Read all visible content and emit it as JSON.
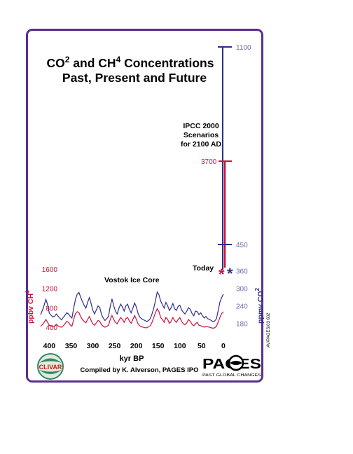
{
  "title": {
    "line1_a": "CO",
    "line1_sup1": "2",
    "line1_b": " and CH",
    "line1_sup2": "4",
    "line1_c": " Concentrations",
    "line2": "Past, Present and Future"
  },
  "annotations": {
    "ipcc": [
      "IPCC 2000",
      "Scenarios",
      "for 2100 AD"
    ],
    "today": "Today",
    "vostok": "Vostok Ice Core",
    "credit": "Compiled by K. Alverson, PAGES IPO",
    "side_code": "AV/PAGES/03 602",
    "clivar": "CLIVAR",
    "pages_logo": "PAGES",
    "pages_sub": "PAST GLOBAL CHANGES"
  },
  "colors": {
    "co2": "#2e2e8c",
    "ch4": "#d0103a",
    "frame": "#5b2d90",
    "text": "#000000",
    "co2_tick_text": "#6c6cae",
    "ch4_tick_text": "#d0103a"
  },
  "chart_data": {
    "type": "line",
    "xlabel": "kyr BP",
    "xlim": [
      420,
      -5
    ],
    "x_ticks": [
      "400",
      "350",
      "300",
      "250",
      "200",
      "150",
      "100",
      "50",
      "0"
    ],
    "y_left": {
      "label_base": "ppbv CH",
      "label_sup": "4",
      "ticks": [
        "1600",
        "1200",
        "800",
        "400"
      ],
      "range": [
        300,
        1800
      ]
    },
    "y_right": {
      "label_base": "ppmv CO",
      "label_sup": "2",
      "ticks": [
        "360",
        "300",
        "240",
        "180"
      ],
      "range": [
        150,
        400
      ]
    },
    "future": {
      "co2_ticks": [
        "1100",
        "450"
      ],
      "ch4_ticks": [
        "3700"
      ]
    },
    "series": [
      {
        "key": "co2",
        "x": [
          420,
          414,
          408,
          404,
          400,
          396,
          392,
          388,
          384,
          380,
          376,
          372,
          368,
          364,
          360,
          356,
          352,
          348,
          344,
          340,
          336,
          332,
          328,
          324,
          320,
          316,
          312,
          308,
          304,
          300,
          296,
          292,
          288,
          284,
          280,
          276,
          272,
          268,
          264,
          260,
          256,
          252,
          248,
          244,
          240,
          236,
          232,
          228,
          224,
          220,
          216,
          212,
          208,
          204,
          200,
          196,
          192,
          188,
          184,
          180,
          176,
          172,
          168,
          164,
          160,
          156,
          152,
          148,
          144,
          140,
          136,
          132,
          128,
          124,
          120,
          116,
          112,
          108,
          104,
          100,
          96,
          92,
          88,
          84,
          80,
          76,
          72,
          68,
          64,
          60,
          56,
          52,
          48,
          44,
          40,
          36,
          32,
          28,
          24,
          20,
          16,
          12,
          8,
          4,
          0
        ],
        "values": [
          210,
          232,
          262,
          245,
          215,
          208,
          202,
          204,
          212,
          205,
          198,
          192,
          200,
          208,
          216,
          212,
          204,
          198,
          232,
          262,
          280,
          286,
          270,
          255,
          242,
          232,
          252,
          268,
          248,
          225,
          212,
          226,
          240,
          234,
          210,
          198,
          190,
          196,
          204,
          238,
          264,
          240,
          222,
          212,
          232,
          246,
          236,
          222,
          240,
          246,
          228,
          216,
          232,
          250,
          236,
          214,
          202,
          196,
          192,
          190,
          186,
          190,
          196,
          212,
          232,
          258,
          288,
          278,
          256,
          244,
          232,
          252,
          240,
          224,
          234,
          248,
          230,
          224,
          238,
          242,
          226,
          218,
          212,
          222,
          234,
          228,
          214,
          206,
          222,
          220,
          210,
          216,
          206,
          198,
          204,
          196,
          194,
          190,
          186,
          188,
          196,
          222,
          252,
          268,
          280
        ]
      },
      {
        "key": "ch4",
        "x": [
          420,
          414,
          408,
          404,
          400,
          396,
          392,
          388,
          384,
          380,
          376,
          372,
          368,
          364,
          360,
          356,
          352,
          348,
          344,
          340,
          336,
          332,
          328,
          324,
          320,
          316,
          312,
          308,
          304,
          300,
          296,
          292,
          288,
          284,
          280,
          276,
          272,
          268,
          264,
          260,
          256,
          252,
          248,
          244,
          240,
          236,
          232,
          228,
          224,
          220,
          216,
          212,
          208,
          204,
          200,
          196,
          192,
          188,
          184,
          180,
          176,
          172,
          168,
          164,
          160,
          156,
          152,
          148,
          144,
          140,
          136,
          132,
          128,
          124,
          120,
          116,
          112,
          108,
          104,
          100,
          96,
          92,
          88,
          84,
          80,
          76,
          72,
          68,
          64,
          60,
          56,
          52,
          48,
          44,
          40,
          36,
          32,
          28,
          24,
          20,
          16,
          12,
          8,
          4,
          0
        ],
        "values": [
          420,
          470,
          560,
          500,
          440,
          430,
          410,
          420,
          460,
          430,
          410,
          400,
          430,
          470,
          520,
          500,
          450,
          420,
          560,
          680,
          720,
          700,
          620,
          560,
          520,
          490,
          560,
          620,
          540,
          470,
          440,
          490,
          540,
          520,
          450,
          420,
          400,
          420,
          440,
          560,
          640,
          560,
          500,
          470,
          540,
          600,
          560,
          500,
          580,
          600,
          530,
          480,
          560,
          640,
          560,
          470,
          430,
          410,
          400,
          390,
          390,
          410,
          430,
          500,
          600,
          700,
          780,
          720,
          600,
          560,
          500,
          600,
          560,
          480,
          520,
          600,
          540,
          500,
          560,
          600,
          520,
          470,
          450,
          490,
          560,
          520,
          460,
          430,
          470,
          500,
          440,
          430,
          420,
          400,
          420,
          410,
          400,
          390,
          380,
          390,
          420,
          500,
          600,
          680,
          720
        ]
      }
    ]
  }
}
